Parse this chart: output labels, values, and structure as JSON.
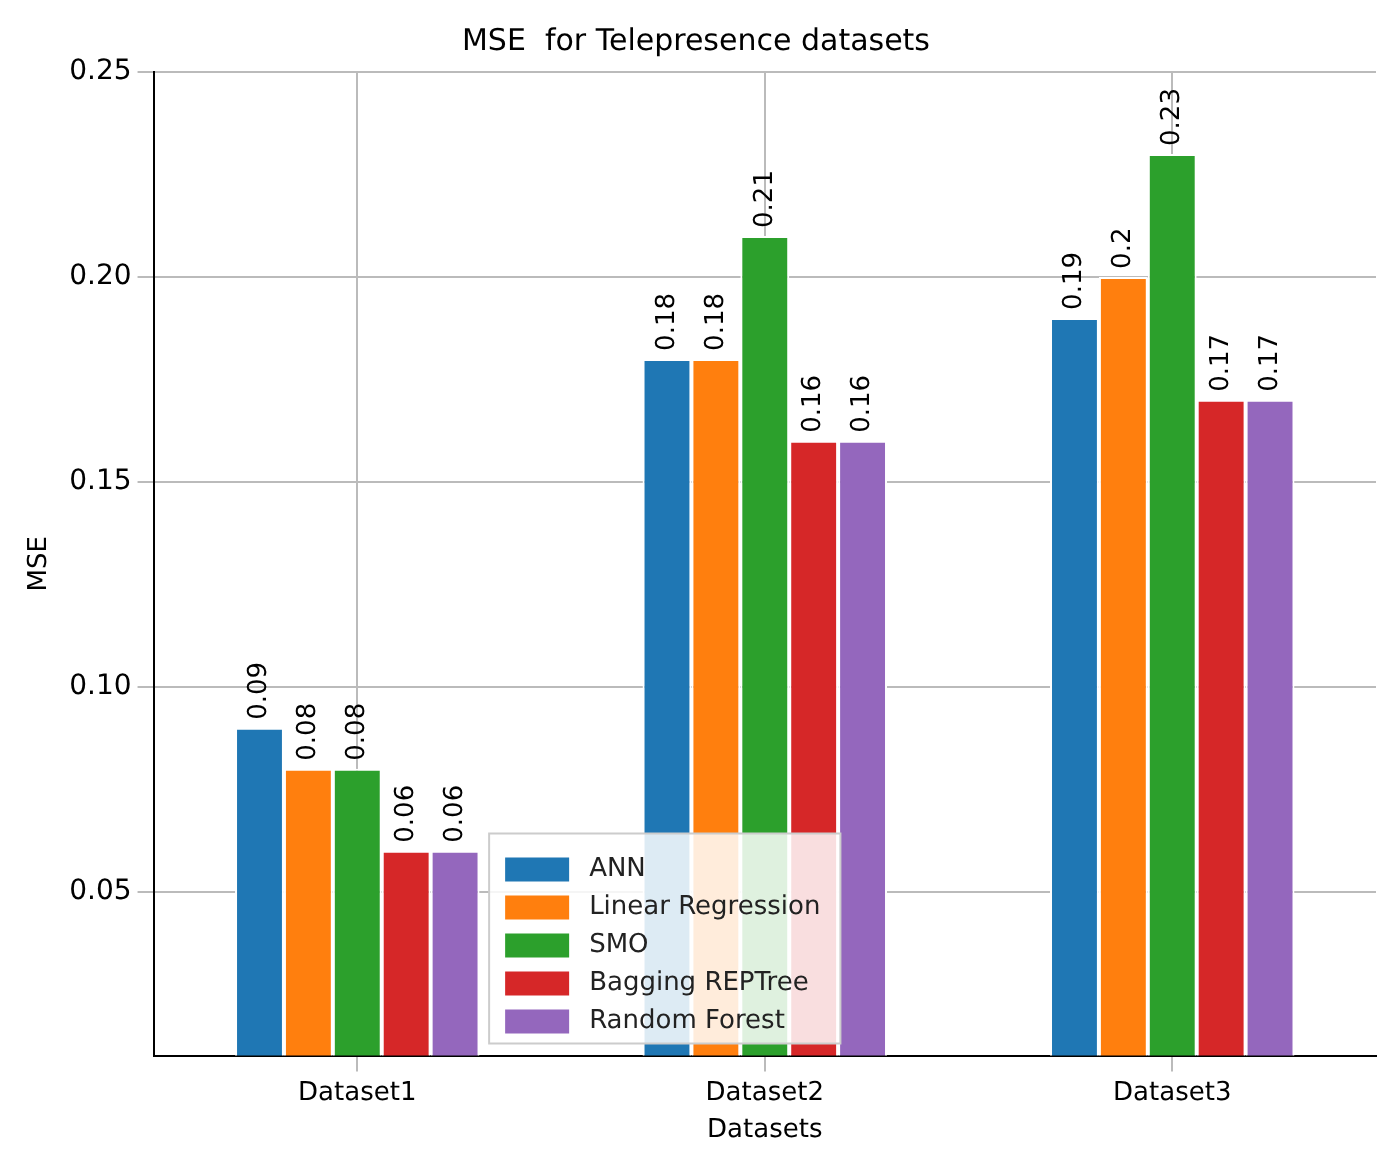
{
  "chart_data": {
    "type": "bar",
    "title": "MSE  for Telepresence datasets",
    "xlabel": "Datasets",
    "ylabel": "MSE",
    "categories": [
      "Dataset1",
      "Dataset2",
      "Dataset3"
    ],
    "series": [
      {
        "name": "ANN",
        "color": "#1f77b4",
        "values": [
          0.09,
          0.18,
          0.19
        ]
      },
      {
        "name": "Linear Regression",
        "color": "#ff7f0e",
        "values": [
          0.08,
          0.18,
          0.2
        ]
      },
      {
        "name": "SMO",
        "color": "#2ca02c",
        "values": [
          0.08,
          0.21,
          0.23
        ]
      },
      {
        "name": "Bagging REPTree",
        "color": "#d62728",
        "values": [
          0.06,
          0.16,
          0.17
        ]
      },
      {
        "name": "Random Forest",
        "color": "#9467bd",
        "values": [
          0.06,
          0.16,
          0.17
        ]
      }
    ],
    "ylim": [
      0.01,
      0.25
    ],
    "yticks": [
      {
        "value": 0.05,
        "label": "0.05"
      },
      {
        "value": 0.1,
        "label": "0.10"
      },
      {
        "value": 0.15,
        "label": "0.15"
      },
      {
        "value": 0.2,
        "label": "0.20"
      },
      {
        "value": 0.25,
        "label": "0.25"
      }
    ],
    "grid": true,
    "legend": "bottom",
    "data_labels": true
  }
}
